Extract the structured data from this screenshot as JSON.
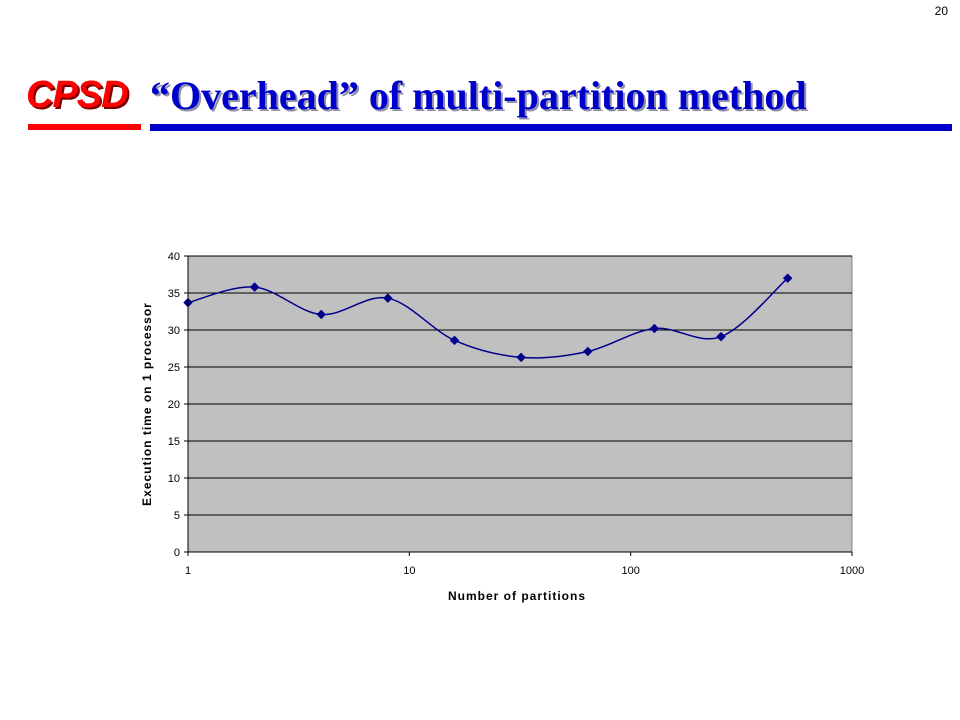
{
  "slide": {
    "number": "20",
    "logo_text": "CPSD",
    "title": "“Overhead” of multi-partition method"
  },
  "colors": {
    "title": "#0000cc",
    "logo": "#ff0000",
    "plot_background": "#c0c0c0",
    "series_line": "#00008b"
  },
  "chart_data": {
    "type": "line",
    "xscale": "log",
    "xlim": [
      1,
      1000
    ],
    "ylim": [
      0,
      40
    ],
    "xticks": [
      "1",
      "10",
      "100",
      "1000"
    ],
    "yticks": [
      "0",
      "5",
      "10",
      "15",
      "20",
      "25",
      "30",
      "35",
      "40"
    ],
    "xlabel": "Number of partitions",
    "ylabel": "Execution time on 1 processor",
    "grid": "horizontal",
    "series": [
      {
        "x": [
          1,
          2,
          4,
          8,
          16,
          32,
          64,
          128,
          256,
          512
        ],
        "values": [
          33.7,
          35.8,
          32.1,
          34.3,
          28.6,
          26.3,
          27.1,
          30.2,
          29.1,
          37.0
        ]
      }
    ]
  }
}
